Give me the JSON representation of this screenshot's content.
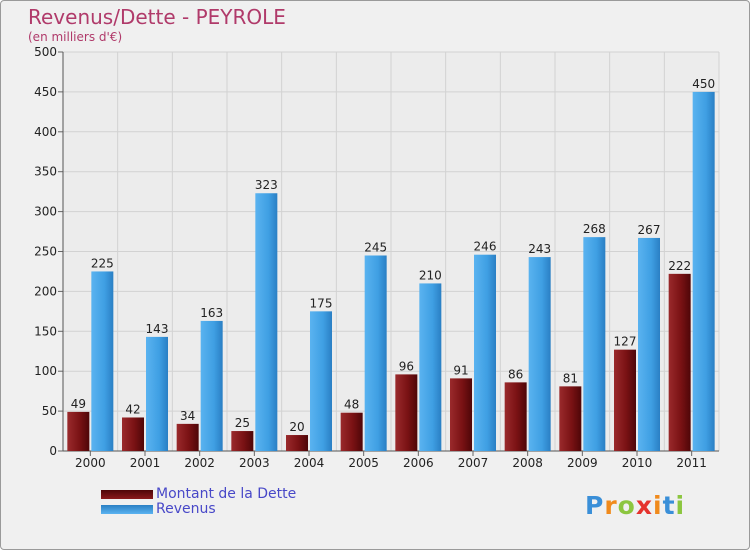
{
  "title": "Revenus/Dette - PEYROLE",
  "subtitle": "(en milliers d'€)",
  "legend": {
    "debt_label": "Montant de la Dette",
    "revenue_label": "Revenus"
  },
  "logo_text": "Proxiti",
  "colors": {
    "debt": "#7a1214",
    "revenue": "#3f9fe3",
    "title": "#b03a6a",
    "legend_text": "#4848c8"
  },
  "chart_data": {
    "type": "bar",
    "title": "Revenus/Dette - PEYROLE",
    "ylabel": "(en milliers d'€)",
    "xlabel": "",
    "categories": [
      "2000",
      "2001",
      "2002",
      "2003",
      "2004",
      "2005",
      "2006",
      "2007",
      "2008",
      "2009",
      "2010",
      "2011"
    ],
    "ylim": [
      0,
      500
    ],
    "yticks": [
      0,
      50,
      100,
      150,
      200,
      250,
      300,
      350,
      400,
      450,
      500
    ],
    "grid": true,
    "legend_position": "bottom-left",
    "series": [
      {
        "name": "Montant de la Dette",
        "values": [
          49,
          42,
          34,
          25,
          20,
          48,
          96,
          91,
          86,
          81,
          127,
          222
        ]
      },
      {
        "name": "Revenus",
        "values": [
          225,
          143,
          163,
          323,
          175,
          245,
          210,
          246,
          243,
          268,
          267,
          450
        ]
      }
    ]
  }
}
